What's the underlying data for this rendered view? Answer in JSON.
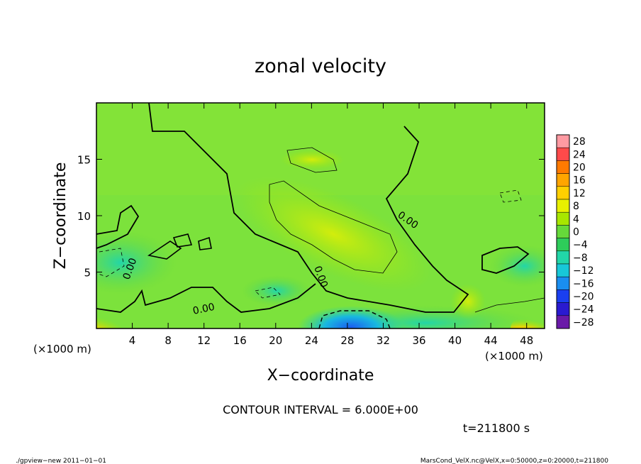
{
  "chart_data": {
    "type": "heatmap",
    "title": "zonal velocity",
    "xlabel": "X−coordinate",
    "ylabel": "Z−coordinate",
    "x_unit_left": "(×1000 m)",
    "x_unit_right": "(×1000 m)",
    "xlim": [
      0,
      50
    ],
    "ylim": [
      0,
      20
    ],
    "x_ticks": [
      4,
      8,
      12,
      16,
      20,
      24,
      28,
      32,
      36,
      40,
      44,
      48
    ],
    "y_ticks": [
      5,
      10,
      15
    ],
    "contour_label": "0.00",
    "contour_interval_text": "CONTOUR INTERVAL = 6.000E+00",
    "time_text": "t=211800 s",
    "footer_left": "./gpview−new   2011−01−01",
    "footer_right": "MarsCond_VelX.nc@VelX,x=0:50000,z=0:20000,t=211800",
    "colorbar": {
      "levels": [
        28,
        24,
        20,
        16,
        12,
        8,
        4,
        0,
        -4,
        -8,
        -12,
        -16,
        -20,
        -24,
        -28
      ],
      "colors": [
        "#ff9aa2",
        "#ff4a4a",
        "#ff7a00",
        "#ffa500",
        "#ffd000",
        "#e8f000",
        "#a8e600",
        "#66d93a",
        "#2ecc5a",
        "#22d6a8",
        "#18c8d8",
        "#1a8ef0",
        "#1a3ff0",
        "#2a1ad0",
        "#6a1aa8"
      ]
    },
    "features": [
      {
        "x": 27,
        "z": 1,
        "value": -16,
        "desc": "negative minimum near bottom"
      },
      {
        "x": 1,
        "z": 0.5,
        "value": 16,
        "desc": "positive maximum bottom-left"
      },
      {
        "x": 49,
        "z": 0.5,
        "value": 12,
        "desc": "positive maximum bottom-right"
      },
      {
        "x": 28,
        "z": 7,
        "value": 8,
        "desc": "positive band"
      }
    ]
  }
}
